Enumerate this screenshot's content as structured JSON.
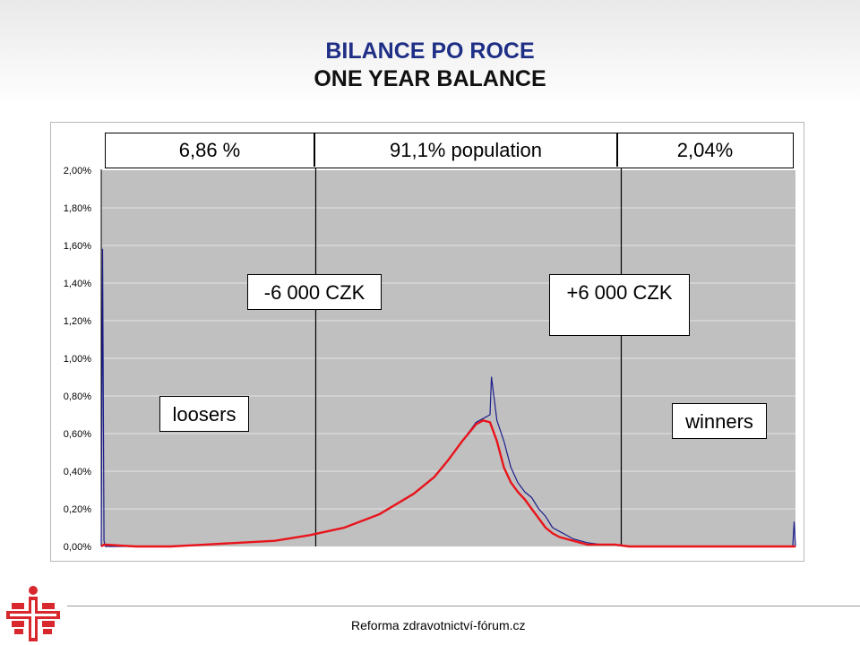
{
  "title": {
    "line1": "BILANCE PO ROCE",
    "line2": "ONE YEAR  BALANCE"
  },
  "footer": {
    "text": "Reforma zdravotnictví-fórum.cz"
  },
  "colors": {
    "title": "#1f2f86",
    "blue_series": "#1c1c8c",
    "red_series": "#e8141c",
    "logo": "#d8282e",
    "grid": "#bfbfbf"
  },
  "icons": {
    "logo": "medical-cross-logo-icon"
  },
  "chart_data": {
    "type": "line",
    "title": "",
    "xlabel": "",
    "ylabel": "",
    "ylim": [
      0,
      2.0
    ],
    "y_ticks": [
      "2,00%",
      "1,80%",
      "1,60%",
      "1,40%",
      "1,20%",
      "1,00%",
      "0,80%",
      "0,60%",
      "0,40%",
      "0,20%",
      "0,00%"
    ],
    "x_range": [
      0,
      100
    ],
    "grid": true,
    "series": [
      {
        "color": "#1c1c8c",
        "x": [
          0,
          0.2,
          0.4,
          0.6,
          5,
          10,
          15,
          20,
          25,
          30,
          35,
          40,
          45,
          48,
          50,
          52,
          54,
          55,
          56,
          56.2,
          57,
          58,
          59,
          60,
          61,
          62,
          63,
          64,
          65,
          66,
          67,
          68,
          69,
          70,
          72,
          74,
          76,
          78,
          80,
          85,
          90,
          95,
          99.6,
          99.8,
          100
        ],
        "y": [
          0,
          1.58,
          0.03,
          0.0,
          0.0,
          0.0,
          0.01,
          0.02,
          0.03,
          0.06,
          0.1,
          0.17,
          0.28,
          0.37,
          0.46,
          0.56,
          0.66,
          0.68,
          0.7,
          0.9,
          0.67,
          0.56,
          0.42,
          0.34,
          0.29,
          0.26,
          0.2,
          0.16,
          0.1,
          0.08,
          0.06,
          0.04,
          0.03,
          0.02,
          0.01,
          0.01,
          0.0,
          0.0,
          0.0,
          0.0,
          0.0,
          0.0,
          0.0,
          0.13,
          0.0
        ]
      },
      {
        "color": "#e8141c",
        "x": [
          0,
          0.4,
          5,
          10,
          15,
          20,
          25,
          30,
          35,
          40,
          45,
          48,
          50,
          52,
          54,
          55,
          56,
          57,
          58,
          59,
          60,
          61,
          62,
          63,
          64,
          65,
          66,
          67,
          68,
          69,
          70,
          72,
          74,
          76,
          78,
          80,
          85,
          90,
          95,
          100
        ],
        "y": [
          0,
          0.01,
          0.0,
          0.0,
          0.01,
          0.02,
          0.03,
          0.06,
          0.1,
          0.17,
          0.28,
          0.37,
          0.46,
          0.56,
          0.65,
          0.67,
          0.66,
          0.56,
          0.42,
          0.34,
          0.29,
          0.25,
          0.2,
          0.15,
          0.1,
          0.07,
          0.05,
          0.04,
          0.03,
          0.02,
          0.01,
          0.01,
          0.01,
          0.0,
          0.0,
          0.0,
          0.0,
          0.0,
          0.0,
          0.0
        ]
      }
    ],
    "vertical_lines_x": [
      30.9,
      74.9
    ],
    "header": {
      "left": "6,86 %",
      "middle": "91,1% population",
      "right": "2,04%"
    },
    "annotations": {
      "minus": "-6 000 CZK",
      "plus": "+6 000 CZK",
      "loosers": "loosers",
      "winners": "winners"
    }
  }
}
